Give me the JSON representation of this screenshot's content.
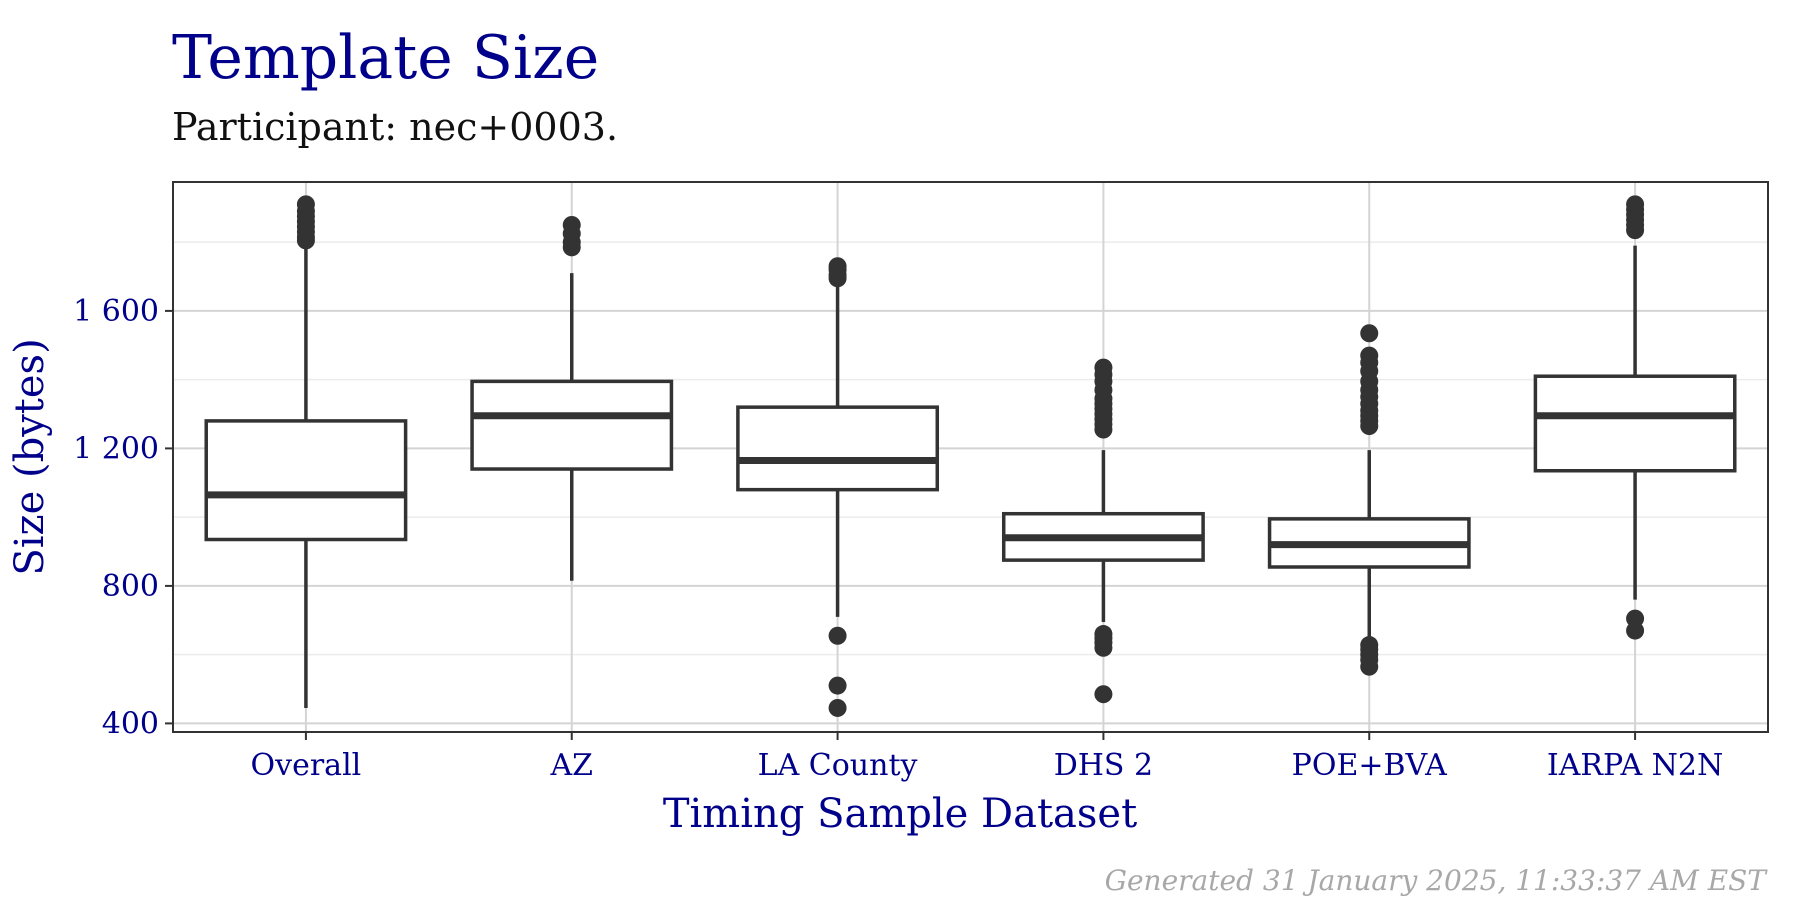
{
  "chart_data": {
    "type": "box",
    "title": "Template Size",
    "subtitle": "Participant: nec+0003.",
    "xlabel": "Timing Sample Dataset",
    "ylabel": "Size (bytes)",
    "caption": "Generated 31 January 2025, 11:33:37 AM EST",
    "categories": [
      "Overall",
      "AZ",
      "LA County",
      "DHS 2",
      "POE+BVA",
      "IARPA N2N"
    ],
    "ylim": [
      375,
      1975
    ],
    "yticks": [
      400,
      800,
      1200,
      1600
    ],
    "ytick_labels": [
      "400",
      "800",
      "1 200",
      "1 600"
    ],
    "grid": true,
    "colors": {
      "title": "#00008B",
      "box": "#333333",
      "grid": "#d4d4d4",
      "minor_grid": "#ececec",
      "caption": "#a8a8a8"
    },
    "boxes": [
      {
        "category": "Overall",
        "min": 445,
        "q1": 935,
        "median": 1065,
        "q3": 1280,
        "max": 1800,
        "outliers": [
          1805,
          1815,
          1830,
          1845,
          1860,
          1875,
          1890,
          1910
        ]
      },
      {
        "category": "AZ",
        "min": 815,
        "q1": 1140,
        "median": 1295,
        "q3": 1395,
        "max": 1710,
        "outliers": [
          1785,
          1800,
          1825,
          1850
        ]
      },
      {
        "category": "LA County",
        "min": 710,
        "q1": 1080,
        "median": 1165,
        "q3": 1320,
        "max": 1690,
        "outliers": [
          445,
          510,
          655,
          1695,
          1705,
          1720,
          1730
        ]
      },
      {
        "category": "DHS 2",
        "min": 695,
        "q1": 875,
        "median": 940,
        "q3": 1010,
        "max": 1195,
        "outliers": [
          485,
          620,
          635,
          648,
          660,
          1255,
          1270,
          1285,
          1300,
          1315,
          1330,
          1345,
          1370,
          1395,
          1415,
          1435
        ]
      },
      {
        "category": "POE+BVA",
        "min": 650,
        "q1": 855,
        "median": 920,
        "q3": 995,
        "max": 1195,
        "outliers": [
          565,
          585,
          600,
          615,
          628,
          1265,
          1280,
          1295,
          1310,
          1330,
          1350,
          1370,
          1395,
          1425,
          1450,
          1470,
          1535
        ]
      },
      {
        "category": "IARPA N2N",
        "min": 760,
        "q1": 1135,
        "median": 1295,
        "q3": 1410,
        "max": 1790,
        "outliers": [
          670,
          705,
          1835,
          1850,
          1865,
          1880,
          1895,
          1910
        ]
      }
    ]
  }
}
